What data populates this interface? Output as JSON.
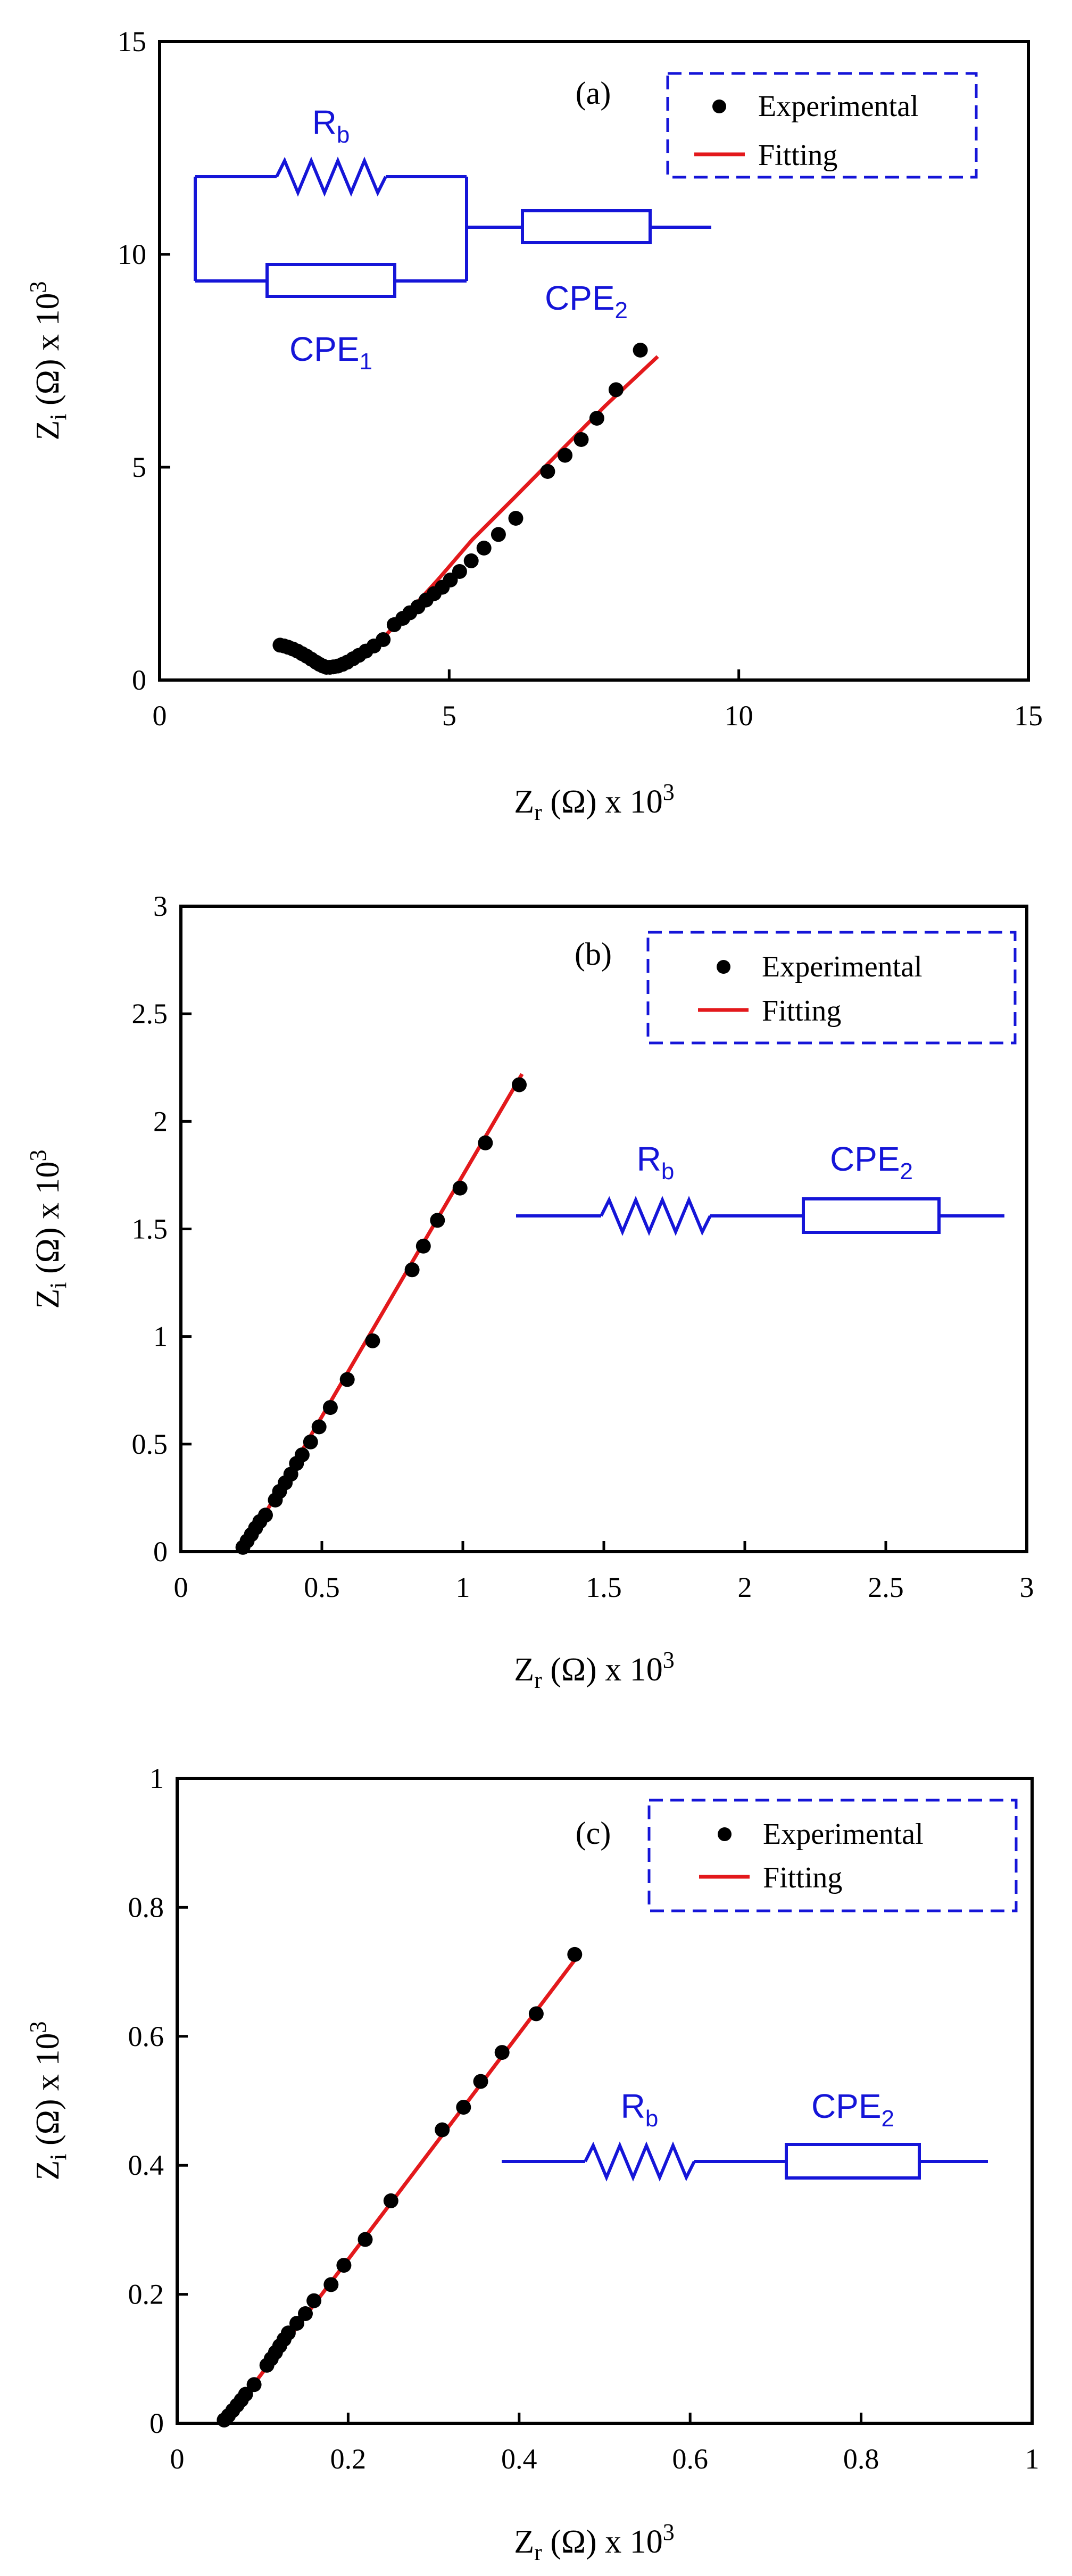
{
  "colors": {
    "experimental": "#000000",
    "fitting": "#e3191c",
    "circuit": "#1515d8",
    "axis": "#000000"
  },
  "chart_data": [
    {
      "type": "scatter",
      "panel_label": "(a)",
      "xlabel": {
        "main": "Z",
        "sub": "r",
        "unit": " (Ω) x 10",
        "sup": "3"
      },
      "ylabel": {
        "main": "Z",
        "sub": "i",
        "unit": " (Ω) x 10",
        "sup": "3"
      },
      "xlim": [
        0,
        15
      ],
      "ylim": [
        0,
        15
      ],
      "xticks": [
        0,
        5,
        10,
        15
      ],
      "yticks": [
        0,
        5,
        10,
        15
      ],
      "xtick_labels": [
        "0",
        "5",
        "10",
        "15"
      ],
      "ytick_labels": [
        "0",
        "5",
        "10",
        "15"
      ],
      "legend": [
        "Experimental",
        "Fitting"
      ],
      "circuit": {
        "type": "parallel_series",
        "labels": {
          "rb_main": "R",
          "rb_sub": "b",
          "cpe1_main": "CPE",
          "cpe1_sub": "1",
          "cpe2_main": "CPE",
          "cpe2_sub": "2"
        }
      },
      "series": [
        {
          "name": "Experimental",
          "kind": "points",
          "x": [
            2.08,
            2.15,
            2.22,
            2.3,
            2.38,
            2.46,
            2.54,
            2.62,
            2.7,
            2.76,
            2.82,
            2.88,
            2.94,
            3.0,
            3.08,
            3.16,
            3.24,
            3.34,
            3.44,
            3.56,
            3.7,
            3.86,
            4.05,
            4.2,
            4.32,
            4.46,
            4.6,
            4.74,
            4.88,
            5.02,
            5.18,
            5.38,
            5.6,
            5.85,
            6.15,
            6.7,
            7.0,
            7.28,
            7.55,
            7.88,
            8.3
          ],
          "y": [
            0.82,
            0.8,
            0.77,
            0.73,
            0.68,
            0.62,
            0.56,
            0.49,
            0.42,
            0.37,
            0.33,
            0.3,
            0.3,
            0.31,
            0.33,
            0.37,
            0.42,
            0.5,
            0.58,
            0.68,
            0.8,
            0.95,
            1.3,
            1.45,
            1.58,
            1.72,
            1.88,
            2.03,
            2.18,
            2.35,
            2.55,
            2.8,
            3.1,
            3.42,
            3.8,
            4.9,
            5.28,
            5.65,
            6.15,
            6.82,
            7.75
          ]
        },
        {
          "name": "Fitting",
          "kind": "line",
          "x": [
            2.1,
            2.3,
            2.5,
            2.7,
            2.85,
            3.0,
            3.2,
            3.5,
            3.9,
            4.3,
            4.8,
            5.4,
            6.1,
            6.9,
            7.7,
            8.6
          ],
          "y": [
            0.85,
            0.8,
            0.68,
            0.5,
            0.38,
            0.33,
            0.38,
            0.6,
            1.05,
            1.6,
            2.35,
            3.3,
            4.25,
            5.35,
            6.45,
            7.6
          ]
        }
      ]
    },
    {
      "type": "scatter",
      "panel_label": "(b)",
      "xlabel": {
        "main": "Z",
        "sub": "r",
        "unit": " (Ω) x 10",
        "sup": "3"
      },
      "ylabel": {
        "main": "Z",
        "sub": "i",
        "unit": " (Ω) x 10",
        "sup": "3"
      },
      "xlim": [
        0,
        3
      ],
      "ylim": [
        0,
        3
      ],
      "xticks": [
        0,
        0.5,
        1,
        1.5,
        2,
        2.5,
        3
      ],
      "yticks": [
        0,
        0.5,
        1,
        1.5,
        2,
        2.5,
        3
      ],
      "xtick_labels": [
        "0",
        "0.5",
        "1",
        "1.5",
        "2",
        "2.5",
        "3"
      ],
      "ytick_labels": [
        "0",
        "0.5",
        "1",
        "1.5",
        "2",
        "2.5",
        "3"
      ],
      "legend": [
        "Experimental",
        "Fitting"
      ],
      "circuit": {
        "type": "series",
        "labels": {
          "rb_main": "R",
          "rb_sub": "b",
          "cpe2_main": "CPE",
          "cpe2_sub": "2"
        }
      },
      "series": [
        {
          "name": "Experimental",
          "kind": "points",
          "x": [
            0.22,
            0.235,
            0.25,
            0.265,
            0.28,
            0.3,
            0.335,
            0.35,
            0.37,
            0.39,
            0.41,
            0.43,
            0.46,
            0.49,
            0.53,
            0.59,
            0.68,
            0.82,
            0.86,
            0.91,
            0.99,
            1.08,
            1.2
          ],
          "y": [
            0.02,
            0.05,
            0.08,
            0.11,
            0.14,
            0.17,
            0.24,
            0.28,
            0.32,
            0.36,
            0.41,
            0.45,
            0.51,
            0.58,
            0.67,
            0.8,
            0.98,
            1.31,
            1.42,
            1.54,
            1.69,
            1.9,
            2.17
          ]
        },
        {
          "name": "Fitting",
          "kind": "line",
          "x": [
            0.22,
            1.21
          ],
          "y": [
            0.0,
            2.22
          ]
        }
      ]
    },
    {
      "type": "scatter",
      "panel_label": "(c)",
      "xlabel": {
        "main": "Z",
        "sub": "r",
        "unit": " (Ω) x 10",
        "sup": "3"
      },
      "ylabel": {
        "main": "Z",
        "sub": "i",
        "unit": " (Ω) x 10",
        "sup": "3"
      },
      "xlim": [
        0,
        1
      ],
      "ylim": [
        0,
        1
      ],
      "xticks": [
        0,
        0.2,
        0.4,
        0.6,
        0.8,
        1
      ],
      "yticks": [
        0,
        0.2,
        0.4,
        0.6,
        0.8,
        1
      ],
      "xtick_labels": [
        "0",
        "0.2",
        "0.4",
        "0.6",
        "0.8",
        "1"
      ],
      "ytick_labels": [
        "0",
        "0.2",
        "0.4",
        "0.6",
        "0.8",
        "1"
      ],
      "legend": [
        "Experimental",
        "Fitting"
      ],
      "circuit": {
        "type": "series",
        "labels": {
          "rb_main": "R",
          "rb_sub": "b",
          "cpe2_main": "CPE",
          "cpe2_sub": "2"
        }
      },
      "series": [
        {
          "name": "Experimental",
          "kind": "points",
          "x": [
            0.055,
            0.06,
            0.065,
            0.07,
            0.075,
            0.08,
            0.09,
            0.105,
            0.11,
            0.115,
            0.12,
            0.125,
            0.13,
            0.14,
            0.15,
            0.16,
            0.18,
            0.195,
            0.22,
            0.25,
            0.31,
            0.335,
            0.355,
            0.38,
            0.42,
            0.465
          ],
          "y": [
            0.005,
            0.012,
            0.02,
            0.028,
            0.036,
            0.045,
            0.06,
            0.09,
            0.1,
            0.11,
            0.12,
            0.13,
            0.14,
            0.155,
            0.17,
            0.19,
            0.215,
            0.245,
            0.285,
            0.345,
            0.455,
            0.49,
            0.53,
            0.575,
            0.635,
            0.727
          ]
        },
        {
          "name": "Fitting",
          "kind": "line",
          "x": [
            0.055,
            0.47
          ],
          "y": [
            0.0,
            0.727
          ]
        }
      ]
    }
  ]
}
